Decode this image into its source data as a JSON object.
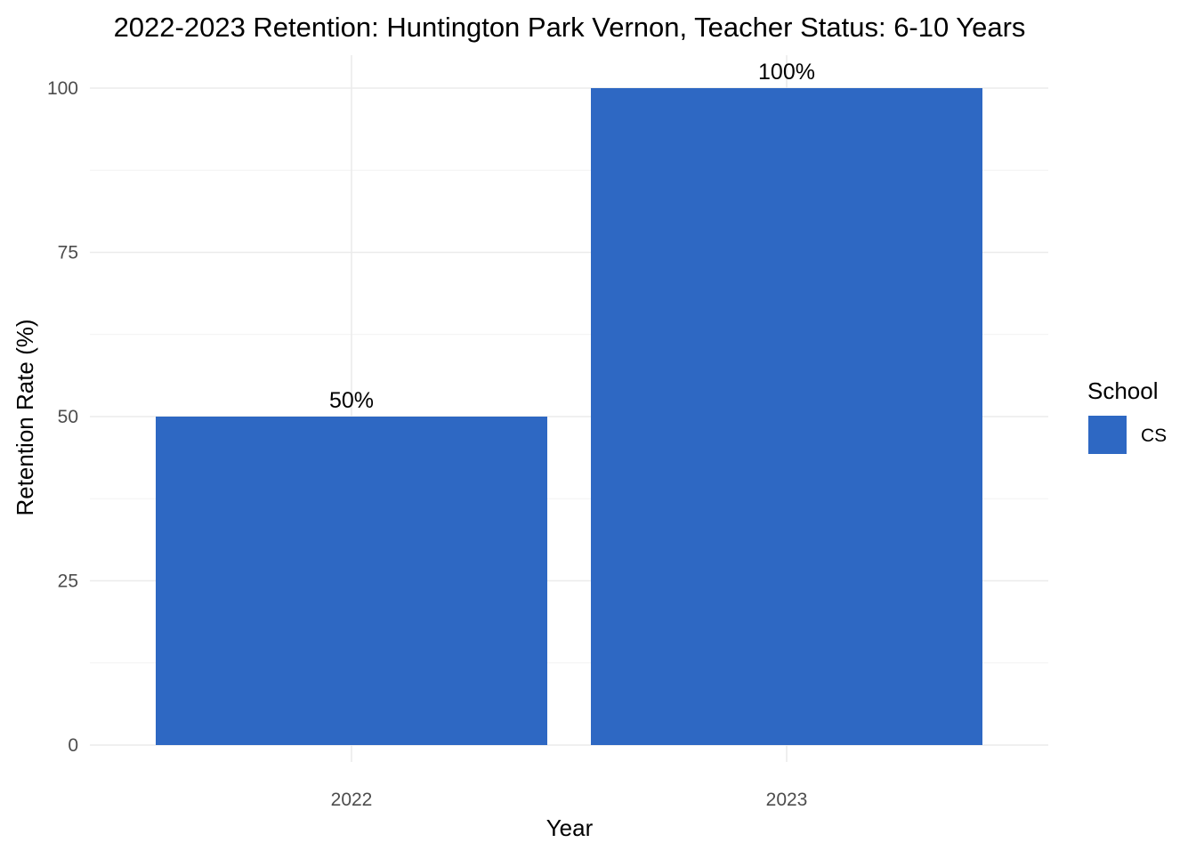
{
  "chart_data": {
    "type": "bar",
    "title": "2022-2023 Retention: Huntington Park Vernon, Teacher Status: 6-10 Years",
    "xlabel": "Year",
    "ylabel": "Retention Rate (%)",
    "categories": [
      "2022",
      "2023"
    ],
    "series": [
      {
        "name": "CS",
        "values": [
          50,
          100
        ],
        "labels": [
          "50%",
          "100%"
        ],
        "color": "#2E68C3"
      }
    ],
    "ylim": [
      0,
      100
    ],
    "y_ticks": [
      0,
      25,
      50,
      75,
      100
    ],
    "y_tick_labels": [
      "0",
      "25",
      "50",
      "75",
      "100"
    ],
    "grid": true,
    "legend": {
      "title": "School",
      "position": "right",
      "entries": [
        "CS"
      ]
    }
  }
}
